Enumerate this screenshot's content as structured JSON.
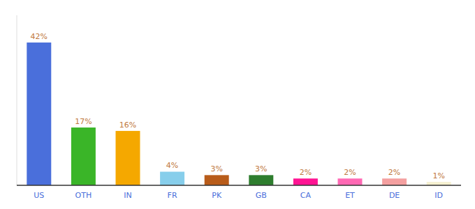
{
  "chart_data": {
    "type": "bar",
    "categories": [
      "US",
      "OTH",
      "IN",
      "FR",
      "PK",
      "GB",
      "CA",
      "ET",
      "DE",
      "ID"
    ],
    "values": [
      42,
      17,
      16,
      4,
      3,
      3,
      2,
      2,
      2,
      1
    ],
    "value_labels": [
      "42%",
      "17%",
      "16%",
      "4%",
      "3%",
      "3%",
      "2%",
      "2%",
      "2%",
      "1%"
    ],
    "colors": [
      "#4a6fdb",
      "#3ab528",
      "#f5a800",
      "#87ceeb",
      "#b85c1a",
      "#2e7d2e",
      "#ff1493",
      "#ff69b4",
      "#f4a0a0",
      "#f5f0d0"
    ],
    "ylim": [
      0,
      50
    ],
    "data_labels": true,
    "tick_labels": "x"
  }
}
